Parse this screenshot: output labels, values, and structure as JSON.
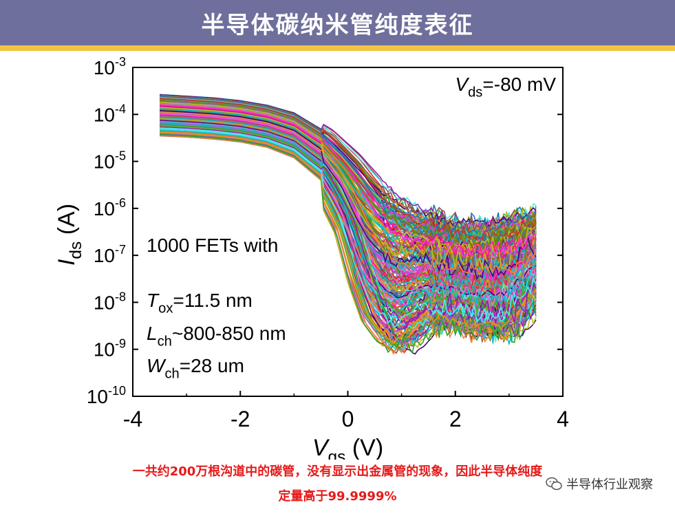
{
  "header": {
    "title": "半导体碳纳米管纯度表征"
  },
  "colors": {
    "header_bg": "#6f6f9d",
    "header_line": "#f2c443",
    "caption": "#e61919"
  },
  "chart_data": {
    "type": "line",
    "title": "",
    "xlabel_main": "V",
    "xlabel_sub": "gs",
    "xlabel_unit": " (V)",
    "ylabel_main": "I",
    "ylabel_sub": "ds",
    "ylabel_unit": " (A)",
    "xlim": [
      -4,
      4
    ],
    "ylim": [
      1e-10,
      0.001
    ],
    "yscale": "log",
    "xticks": [
      {
        "v": -4,
        "label": "-4"
      },
      {
        "v": -2,
        "label": "-2"
      },
      {
        "v": 0,
        "label": "0"
      },
      {
        "v": 2,
        "label": "2"
      },
      {
        "v": 4,
        "label": "4"
      }
    ],
    "yticks": [
      {
        "exp": -10,
        "base": "10",
        "sup": "-10"
      },
      {
        "exp": -9,
        "base": "10",
        "sup": "-9"
      },
      {
        "exp": -8,
        "base": "10",
        "sup": "-8"
      },
      {
        "exp": -7,
        "base": "10",
        "sup": "-7"
      },
      {
        "exp": -6,
        "base": "10",
        "sup": "-6"
      },
      {
        "exp": -5,
        "base": "10",
        "sup": "-5"
      },
      {
        "exp": -4,
        "base": "10",
        "sup": "-4"
      },
      {
        "exp": -3,
        "base": "10",
        "sup": "-3"
      }
    ],
    "annotations": {
      "vds": {
        "main": "V",
        "sub": "ds",
        "rest": "=-80 mV"
      },
      "count": {
        "text": "1000 FETs with"
      },
      "tox": {
        "main": "T",
        "sub": "ox",
        "rest": "=11.5 nm"
      },
      "lch": {
        "main": "L",
        "sub": "ch",
        "rest": "~800-850 nm"
      },
      "wch": {
        "main": "W",
        "sub": "ch",
        "rest": "=28 um"
      }
    },
    "series_summary": {
      "x": [
        -3.5,
        -3.0,
        -2.5,
        -2.0,
        -1.5,
        -1.0,
        -0.5,
        0.0,
        0.25,
        0.5,
        0.75,
        1.0,
        1.25,
        1.5,
        2.0,
        2.5,
        3.0,
        3.5
      ],
      "upper_envelope": [
        0.00027,
        0.00025,
        0.00023,
        0.0002,
        0.00016,
        0.00011,
        5e-05,
        1.6e-05,
        8e-06,
        4e-06,
        2.2e-06,
        1.5e-06,
        1e-06,
        8e-07,
        5e-07,
        5e-07,
        6e-07,
        9e-07
      ],
      "lower_envelope": [
        3.5e-05,
        3.3e-05,
        3e-05,
        2.6e-05,
        2e-05,
        1.2e-05,
        4e-06,
        2.5e-07,
        2e-08,
        3e-09,
        1.2e-09,
        8e-10,
        1.5e-09,
        3e-09,
        3e-09,
        2e-09,
        2e-09,
        1e-08
      ]
    },
    "curve_count": 1000,
    "colors": [
      "#1f77b4",
      "#ff7f0e",
      "#2ca02c",
      "#d62728",
      "#9467bd",
      "#8c564b",
      "#e377c2",
      "#7f7f7f",
      "#bcbd22",
      "#17becf",
      "#d4a017",
      "#00bfbf",
      "#ff1493",
      "#4b0082",
      "#3cb44b",
      "#f58231",
      "#911eb4",
      "#46f0f0",
      "#f032e6",
      "#808000"
    ],
    "grid": false,
    "legend": "none"
  },
  "caption": {
    "line1": "一共约200万根沟道中的碳管，没有显示出金属管的现象，因此半导体纯度",
    "line2": "定量高于99.9999%"
  },
  "watermark": {
    "text": "半导体行业观察",
    "icon": "wechat-icon"
  }
}
